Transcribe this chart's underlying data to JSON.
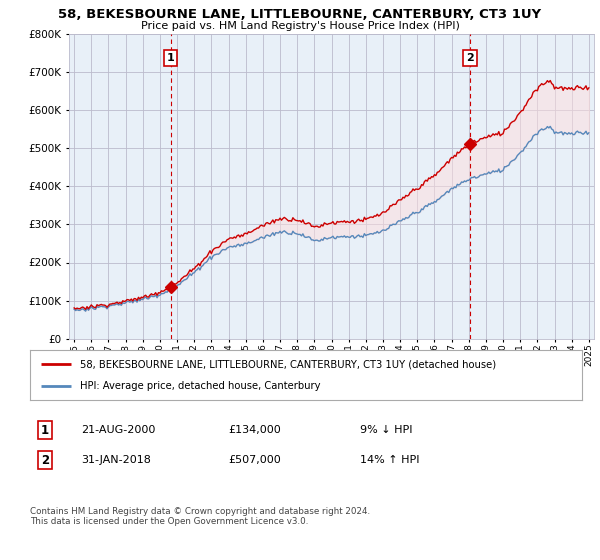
{
  "title": "58, BEKESBOURNE LANE, LITTLEBOURNE, CANTERBURY, CT3 1UY",
  "subtitle": "Price paid vs. HM Land Registry's House Price Index (HPI)",
  "legend_line1": "58, BEKESBOURNE LANE, LITTLEBOURNE, CANTERBURY, CT3 1UY (detached house)",
  "legend_line2": "HPI: Average price, detached house, Canterbury",
  "annotation1_label": "1",
  "annotation1_date": "21-AUG-2000",
  "annotation1_price": "£134,000",
  "annotation1_hpi": "9% ↓ HPI",
  "annotation2_label": "2",
  "annotation2_date": "31-JAN-2018",
  "annotation2_price": "£507,000",
  "annotation2_hpi": "14% ↑ HPI",
  "footnote": "Contains HM Land Registry data © Crown copyright and database right 2024.\nThis data is licensed under the Open Government Licence v3.0.",
  "property_color": "#cc0000",
  "hpi_color": "#5588bb",
  "hpi_fill_color": "#ddeeff",
  "background_color": "#ffffff",
  "chart_bg_color": "#e8f0f8",
  "grid_color": "#bbbbcc",
  "ylim": [
    0,
    800000
  ],
  "xlim_start": 1995,
  "xlim_end": 2025,
  "sale1_x": 2000.62,
  "sale1_y": 134000,
  "sale2_x": 2018.08,
  "sale2_y": 507000
}
